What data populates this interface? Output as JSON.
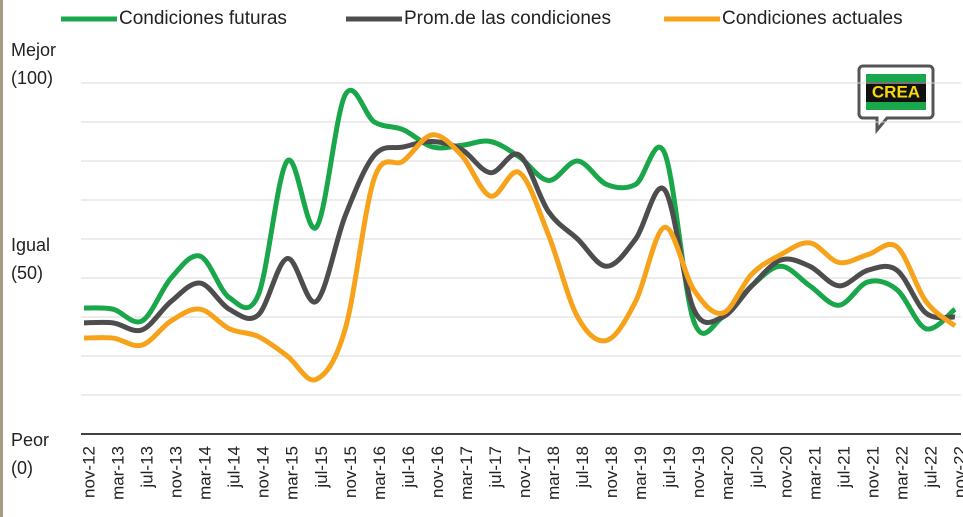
{
  "chart_data": {
    "type": "line",
    "categories": [
      "nov-12",
      "mar-13",
      "jul-13",
      "nov-13",
      "mar-14",
      "jul-14",
      "nov-14",
      "mar-15",
      "jul-15",
      "nov-15",
      "mar-16",
      "jul-16",
      "nov-16",
      "mar-17",
      "jul-17",
      "nov-17",
      "mar-18",
      "jul-18",
      "nov-18",
      "mar-19",
      "jul-19",
      "nov-19",
      "mar-20",
      "jul-20",
      "nov-20",
      "mar-21",
      "jul-21",
      "nov-21",
      "mar-22",
      "jul-22",
      "nov-22"
    ],
    "series": [
      {
        "name": "Condiciones futuras",
        "color": "#1aa64a",
        "values": [
          32.3,
          32,
          29,
          40,
          45.6,
          35,
          35.6,
          70,
          53,
          87,
          80,
          78,
          73.6,
          74,
          75,
          71,
          65,
          70,
          64,
          64,
          72,
          29,
          30,
          38,
          43,
          38,
          33,
          39,
          37,
          27,
          32
        ]
      },
      {
        "name": "Prom.de las condiciones",
        "color": "#4d4d4d",
        "values": [
          28.5,
          28.5,
          26.7,
          34,
          38.7,
          32,
          30.5,
          45,
          34,
          56,
          71.5,
          73.6,
          75,
          73,
          67,
          71.5,
          57,
          50,
          43,
          50,
          62.6,
          32,
          30,
          38,
          44.6,
          43,
          38,
          42,
          42,
          31,
          30
        ]
      },
      {
        "name": "Condiciones actuales",
        "color": "#f7a21b",
        "values": [
          24.6,
          24.6,
          22.8,
          29,
          32,
          27,
          25,
          20,
          14,
          27,
          65.6,
          70,
          76.7,
          71.5,
          61,
          67,
          51,
          30,
          24,
          34,
          53,
          37,
          31,
          41,
          46,
          49,
          44,
          46,
          48,
          34,
          27.7
        ]
      }
    ],
    "ylim": [
      0,
      100
    ],
    "yticks": [
      {
        "value": 0,
        "label": "Peor (0)"
      },
      {
        "value": 10,
        "label": null
      },
      {
        "value": 20,
        "label": null
      },
      {
        "value": 30,
        "label": null
      },
      {
        "value": 40,
        "label": null
      },
      {
        "value": 50,
        "label": "Igual (50)"
      },
      {
        "value": 60,
        "label": null
      },
      {
        "value": 70,
        "label": null
      },
      {
        "value": 80,
        "label": null
      },
      {
        "value": 90,
        "label": null
      },
      {
        "value": 100,
        "label": "Mejor (100)"
      }
    ],
    "grid": true,
    "logo": "CREA"
  }
}
